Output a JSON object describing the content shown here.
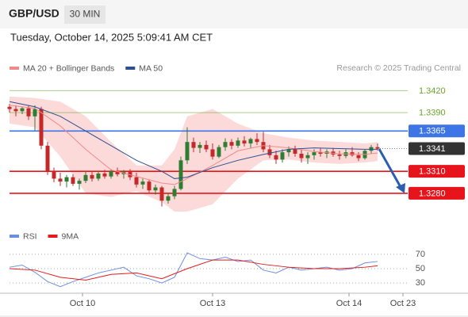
{
  "header": {
    "symbol": "GBP/USD",
    "interval": "30 MIN",
    "timestamp": "Tuesday, October 14, 2025 5:09:41 AM CET",
    "credit": "Research © 2025 Trading Central"
  },
  "chart_data": [
    {
      "type": "candlestick",
      "ylim": [
        1.3241,
        1.3441
      ],
      "xlim": [
        -1.5,
        62.5
      ],
      "up_color": "#2e7d32",
      "down_color": "#c62828",
      "open": [
        1.3398,
        1.3395,
        1.3392,
        1.3396,
        1.3385,
        1.3395,
        1.3345,
        1.331,
        1.33,
        1.3296,
        1.3302,
        1.3293,
        1.3297,
        1.3305,
        1.33,
        1.3307,
        1.3303,
        1.331,
        1.3306,
        1.3309,
        1.3302,
        1.3292,
        1.3296,
        1.3284,
        1.3288,
        1.327,
        1.3276,
        1.3286,
        1.3325,
        1.335,
        1.3342,
        1.3346,
        1.334,
        1.333,
        1.3343,
        1.335,
        1.3345,
        1.3352,
        1.3348,
        1.3354,
        1.335,
        1.334,
        1.3332,
        1.3326,
        1.3336,
        1.334,
        1.3334,
        1.3328,
        1.3332,
        1.3336,
        1.3334,
        1.3337,
        1.3333,
        1.3331,
        1.3336,
        1.3332,
        1.3328,
        1.3338,
        1.3343
      ],
      "high": [
        1.3402,
        1.34,
        1.3398,
        1.34,
        1.34,
        1.3398,
        1.335,
        1.3315,
        1.3308,
        1.3305,
        1.3306,
        1.33,
        1.331,
        1.3309,
        1.331,
        1.3312,
        1.3313,
        1.3315,
        1.3312,
        1.3313,
        1.3308,
        1.33,
        1.3299,
        1.3292,
        1.329,
        1.328,
        1.329,
        1.333,
        1.337,
        1.3356,
        1.335,
        1.3352,
        1.3348,
        1.3346,
        1.3355,
        1.3354,
        1.3356,
        1.3358,
        1.3356,
        1.3362,
        1.3364,
        1.3346,
        1.3338,
        1.334,
        1.3344,
        1.3345,
        1.334,
        1.3336,
        1.334,
        1.3342,
        1.334,
        1.3342,
        1.3338,
        1.334,
        1.3343,
        1.3336,
        1.334,
        1.3346,
        1.3348
      ],
      "low": [
        1.339,
        1.3385,
        1.3388,
        1.338,
        1.3365,
        1.334,
        1.3305,
        1.3295,
        1.329,
        1.3288,
        1.329,
        1.3285,
        1.3294,
        1.3296,
        1.3297,
        1.33,
        1.33,
        1.3303,
        1.33,
        1.3298,
        1.3288,
        1.3286,
        1.328,
        1.3278,
        1.3262,
        1.3266,
        1.3272,
        1.3284,
        1.332,
        1.3336,
        1.3335,
        1.3336,
        1.3326,
        1.3328,
        1.3338,
        1.334,
        1.3342,
        1.3344,
        1.3342,
        1.3346,
        1.3336,
        1.3328,
        1.332,
        1.3322,
        1.333,
        1.333,
        1.3322,
        1.332,
        1.3326,
        1.333,
        1.3328,
        1.333,
        1.3326,
        1.3328,
        1.333,
        1.3324,
        1.3326,
        1.3334,
        1.3338
      ],
      "close": [
        1.3395,
        1.3392,
        1.3396,
        1.3385,
        1.3395,
        1.3345,
        1.331,
        1.33,
        1.3296,
        1.3302,
        1.3293,
        1.3297,
        1.3305,
        1.33,
        1.3307,
        1.3303,
        1.331,
        1.3306,
        1.3309,
        1.3302,
        1.3292,
        1.3296,
        1.3284,
        1.3288,
        1.327,
        1.3276,
        1.3286,
        1.3325,
        1.335,
        1.3342,
        1.3346,
        1.334,
        1.333,
        1.3343,
        1.335,
        1.3345,
        1.3352,
        1.3348,
        1.3354,
        1.335,
        1.334,
        1.3332,
        1.3326,
        1.3336,
        1.334,
        1.3334,
        1.3328,
        1.3332,
        1.3336,
        1.3334,
        1.3337,
        1.3333,
        1.3331,
        1.3336,
        1.3332,
        1.3328,
        1.3338,
        1.3343,
        1.3341
      ],
      "series": [
        {
          "name": "MA 20 + Bollinger Bands",
          "color": "#f08a8a",
          "band_color": "#fcd3d3",
          "x": [
            0,
            4,
            8,
            12,
            16,
            20,
            24,
            26,
            28,
            32,
            36,
            40,
            44,
            48,
            52,
            56,
            58
          ],
          "values": [
            1.34,
            1.3396,
            1.3372,
            1.334,
            1.3312,
            1.3303,
            1.3294,
            1.3292,
            1.33,
            1.3318,
            1.3338,
            1.3345,
            1.3342,
            1.3337,
            1.3334,
            1.3333,
            1.3335
          ],
          "upper": [
            1.3412,
            1.341,
            1.3405,
            1.3385,
            1.335,
            1.3318,
            1.3318,
            1.334,
            1.3385,
            1.3395,
            1.3375,
            1.3362,
            1.3356,
            1.3352,
            1.335,
            1.3348,
            1.335
          ],
          "lower": [
            1.3375,
            1.337,
            1.333,
            1.328,
            1.3275,
            1.3283,
            1.3268,
            1.3255,
            1.3255,
            1.3265,
            1.33,
            1.3325,
            1.3326,
            1.3322,
            1.332,
            1.3322,
            1.3324
          ]
        },
        {
          "name": "MA 50",
          "color": "#2c4f8f",
          "x": [
            0,
            4,
            8,
            12,
            16,
            20,
            24,
            26,
            28,
            32,
            36,
            40,
            44,
            48,
            52,
            56,
            58
          ],
          "values": [
            1.3405,
            1.3398,
            1.3385,
            1.3365,
            1.3345,
            1.3325,
            1.331,
            1.33,
            1.3302,
            1.3315,
            1.3325,
            1.3333,
            1.334,
            1.3342,
            1.3341,
            1.334,
            1.334
          ]
        }
      ],
      "levels": [
        {
          "value": 1.342,
          "label": "1.3420",
          "color": "#6aa52a",
          "style": "text"
        },
        {
          "value": 1.339,
          "label": "1.3390",
          "color": "#6aa52a",
          "style": "text"
        },
        {
          "value": 1.3365,
          "label": "1.3365",
          "color": "#3d74e6",
          "style": "box"
        },
        {
          "value": 1.3341,
          "label": "1.3341",
          "color": "#333333",
          "style": "current"
        },
        {
          "value": 1.331,
          "label": "1.3310",
          "color": "#e8141c",
          "style": "box"
        },
        {
          "value": 1.328,
          "label": "1.3280",
          "color": "#e8141c",
          "style": "box"
        }
      ]
    },
    {
      "type": "line",
      "ylim": [
        18,
        82
      ],
      "yticks": [
        70,
        50,
        30
      ],
      "xlim": [
        -1.5,
        62.5
      ],
      "grid": true,
      "xticks": [
        {
          "value": 11.5,
          "label": "Oct 10"
        },
        {
          "value": 32,
          "label": "Oct 13"
        },
        {
          "value": 53.5,
          "label": "Oct 14"
        },
        {
          "value": 62,
          "label": "Oct 23"
        }
      ],
      "series": [
        {
          "name": "RSI",
          "color": "#6b8fe0",
          "x": [
            0,
            2,
            4,
            6,
            8,
            10,
            12,
            14,
            16,
            18,
            20,
            22,
            24,
            26,
            28,
            30,
            32,
            34,
            36,
            38,
            40,
            42,
            44,
            46,
            48,
            50,
            52,
            54,
            56,
            58
          ],
          "values": [
            52,
            55,
            45,
            32,
            25,
            32,
            38,
            44,
            48,
            52,
            40,
            36,
            30,
            38,
            72,
            64,
            62,
            66,
            60,
            62,
            48,
            44,
            52,
            48,
            50,
            52,
            48,
            50,
            58,
            60
          ]
        },
        {
          "name": "9MA",
          "color": "#e31b1b",
          "x": [
            0,
            4,
            8,
            12,
            16,
            20,
            24,
            28,
            32,
            36,
            40,
            44,
            48,
            52,
            56,
            58
          ],
          "values": [
            50,
            48,
            38,
            34,
            42,
            44,
            36,
            50,
            62,
            62,
            56,
            52,
            50,
            50,
            52,
            54
          ]
        }
      ]
    }
  ]
}
